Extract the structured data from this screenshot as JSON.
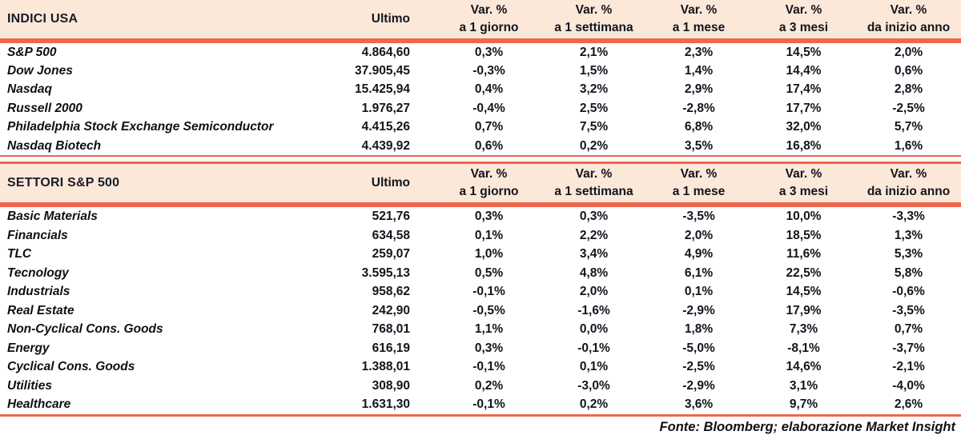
{
  "columns": {
    "ultimo_label": "Ultimo",
    "var_cols": [
      {
        "line1": "Var. %",
        "line2": "a 1 giorno"
      },
      {
        "line1": "Var. %",
        "line2": "a 1 settimana"
      },
      {
        "line1": "Var. %",
        "line2": "a 1 mese"
      },
      {
        "line1": "Var. %",
        "line2": "a 3 mesi"
      },
      {
        "line1": "Var. %",
        "line2": "da inizio anno"
      }
    ]
  },
  "sections": [
    {
      "title": "INDICI USA",
      "rows": [
        {
          "name": "S&P 500",
          "ultimo": "4.864,60",
          "values": [
            "0,3%",
            "2,1%",
            "2,3%",
            "14,5%",
            "2,0%"
          ]
        },
        {
          "name": "Dow Jones",
          "ultimo": "37.905,45",
          "values": [
            "-0,3%",
            "1,5%",
            "1,4%",
            "14,4%",
            "0,6%"
          ]
        },
        {
          "name": "Nasdaq",
          "ultimo": "15.425,94",
          "values": [
            "0,4%",
            "3,2%",
            "2,9%",
            "17,4%",
            "2,8%"
          ]
        },
        {
          "name": "Russell 2000",
          "ultimo": "1.976,27",
          "values": [
            "-0,4%",
            "2,5%",
            "-2,8%",
            "17,7%",
            "-2,5%"
          ]
        },
        {
          "name": "Philadelphia Stock Exchange Semiconductor",
          "ultimo": "4.415,26",
          "values": [
            "0,7%",
            "7,5%",
            "6,8%",
            "32,0%",
            "5,7%"
          ]
        },
        {
          "name": "Nasdaq Biotech",
          "ultimo": "4.439,92",
          "values": [
            "0,6%",
            "0,2%",
            "3,5%",
            "16,8%",
            "1,6%"
          ]
        }
      ]
    },
    {
      "title": "SETTORI S&P 500",
      "rows": [
        {
          "name": "Basic Materials",
          "ultimo": "521,76",
          "values": [
            "0,3%",
            "0,3%",
            "-3,5%",
            "10,0%",
            "-3,3%"
          ]
        },
        {
          "name": "Financials",
          "ultimo": "634,58",
          "values": [
            "0,1%",
            "2,2%",
            "2,0%",
            "18,5%",
            "1,3%"
          ]
        },
        {
          "name": "TLC",
          "ultimo": "259,07",
          "values": [
            "1,0%",
            "3,4%",
            "4,9%",
            "11,6%",
            "5,3%"
          ]
        },
        {
          "name": "Tecnology",
          "ultimo": "3.595,13",
          "values": [
            "0,5%",
            "4,8%",
            "6,1%",
            "22,5%",
            "5,8%"
          ]
        },
        {
          "name": "Industrials",
          "ultimo": "958,62",
          "values": [
            "-0,1%",
            "2,0%",
            "0,1%",
            "14,5%",
            "-0,6%"
          ]
        },
        {
          "name": "Real Estate",
          "ultimo": "242,90",
          "values": [
            "-0,5%",
            "-1,6%",
            "-2,9%",
            "17,9%",
            "-3,5%"
          ]
        },
        {
          "name": "Non-Cyclical Cons. Goods",
          "ultimo": "768,01",
          "values": [
            "1,1%",
            "0,0%",
            "1,8%",
            "7,3%",
            "0,7%"
          ]
        },
        {
          "name": "Energy",
          "ultimo": "616,19",
          "values": [
            "0,3%",
            "-0,1%",
            "-5,0%",
            "-8,1%",
            "-3,7%"
          ]
        },
        {
          "name": "Cyclical Cons. Goods",
          "ultimo": "1.388,01",
          "values": [
            "-0,1%",
            "0,1%",
            "-2,5%",
            "14,6%",
            "-2,1%"
          ]
        },
        {
          "name": "Utilities",
          "ultimo": "308,90",
          "values": [
            "0,2%",
            "-3,0%",
            "-2,9%",
            "3,1%",
            "-4,0%"
          ]
        },
        {
          "name": "Healthcare",
          "ultimo": "1.631,30",
          "values": [
            "-0,1%",
            "0,2%",
            "3,6%",
            "9,7%",
            "2,6%"
          ]
        }
      ]
    }
  ],
  "footer": {
    "source_note": "Fonte: Bloomberg; elaborazione Market Insight"
  },
  "colors": {
    "accent": "#f1664c",
    "accent_gap": "#fbd9cb",
    "header_bg": "#fbe8d8",
    "ink": "#14141e"
  }
}
